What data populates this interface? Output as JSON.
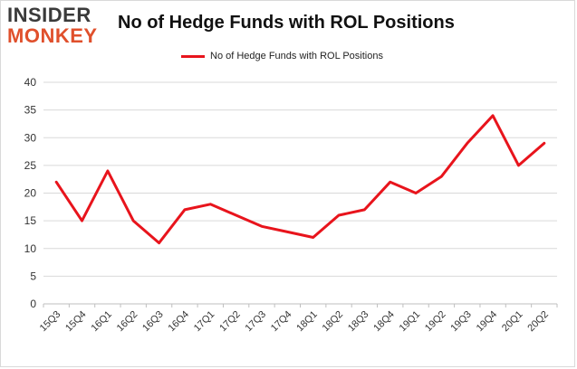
{
  "logo": {
    "line1": "INSIDER",
    "line2": "MONKEY"
  },
  "chart_data": {
    "type": "line",
    "title": "No of Hedge Funds with ROL Positions",
    "xlabel": "",
    "ylabel": "",
    "categories": [
      "15Q3",
      "15Q4",
      "16Q1",
      "16Q2",
      "16Q3",
      "16Q4",
      "17Q1",
      "17Q2",
      "17Q3",
      "17Q4",
      "18Q1",
      "18Q2",
      "18Q3",
      "18Q4",
      "19Q1",
      "19Q2",
      "19Q3",
      "19Q4",
      "20Q1",
      "20Q2"
    ],
    "series": [
      {
        "name": "No of Hedge Funds with ROL Positions",
        "color": "#e8141c",
        "values": [
          22,
          15,
          24,
          15,
          11,
          17,
          18,
          16,
          14,
          13,
          12,
          16,
          17,
          22,
          20,
          23,
          29,
          34,
          25,
          29
        ]
      }
    ],
    "ylim": [
      0,
      40
    ],
    "yticks": [
      0,
      5,
      10,
      15,
      20,
      25,
      30,
      35,
      40
    ],
    "grid": true,
    "legend_position": "top-center"
  }
}
